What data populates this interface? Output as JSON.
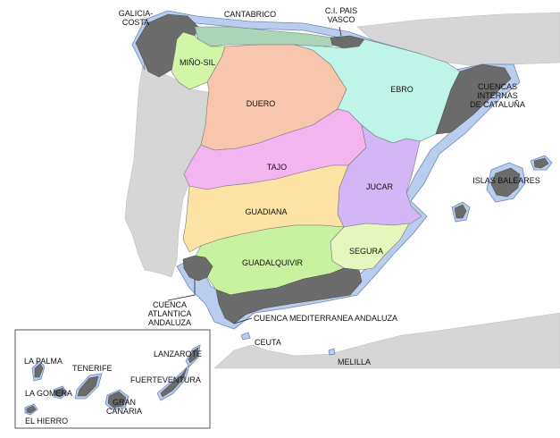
{
  "map": {
    "basins": [
      {
        "key": "galicia",
        "label": "GALICIA-\nCOSTA",
        "color": "#6b6b6b"
      },
      {
        "key": "cantabrico",
        "label": "CANTABRICO",
        "color": "#a9d6b9"
      },
      {
        "key": "pais_vasco",
        "label": "C.I. PAIS\nVASCO",
        "color": "#6b6b6b"
      },
      {
        "key": "mino_sil",
        "label": "MIÑO-SIL",
        "color": "#d3f5a8"
      },
      {
        "key": "duero",
        "label": "DUERO",
        "color": "#f7c6ac"
      },
      {
        "key": "ebro",
        "label": "EBRO",
        "color": "#bff5e9"
      },
      {
        "key": "cataluna",
        "label": "CUENCAS\nINTERNAS\nDE CATALUÑA",
        "color": "#6b6b6b"
      },
      {
        "key": "tajo",
        "label": "TAJO",
        "color": "#f3b5ef"
      },
      {
        "key": "jucar",
        "label": "JUCAR",
        "color": "#d2b6f5"
      },
      {
        "key": "baleares",
        "label": "ISLAS BALEARES",
        "color": "#6b6b6b"
      },
      {
        "key": "guadiana",
        "label": "GUADIANA",
        "color": "#fde2a6"
      },
      {
        "key": "segura",
        "label": "SEGURA",
        "color": "#e6f7bd"
      },
      {
        "key": "guadalquivir",
        "label": "GUADALQUIVIR",
        "color": "#c9f2a0"
      },
      {
        "key": "atlantica",
        "label": "CUENCA\nATLANTICA\nANDALUZA",
        "color": "#6b6b6b"
      },
      {
        "key": "mediterranea",
        "label": "CUENCA MEDITERRANEA ANDALUZA",
        "color": "#6b6b6b"
      },
      {
        "key": "ceuta",
        "label": "CEUTA",
        "color": "#d6d6d6"
      },
      {
        "key": "melilla",
        "label": "MELILLA",
        "color": "#d6d6d6"
      }
    ],
    "canarias": [
      {
        "key": "la_palma",
        "label": "LA PALMA"
      },
      {
        "key": "tenerife",
        "label": "TENERIFE"
      },
      {
        "key": "la_gomera",
        "label": "LA GOMERA"
      },
      {
        "key": "el_hierro",
        "label": "EL HIERRO"
      },
      {
        "key": "gran_canaria",
        "label": "GRAN\nCANARIA"
      },
      {
        "key": "lanzarote",
        "label": "LANZAROTE"
      },
      {
        "key": "fuerteventura",
        "label": "FUERTEVENTURA"
      }
    ],
    "colors": {
      "sea_buffer": "#b9cdee",
      "neighbour_land": "#d6d6d6",
      "island_basins": "#6b6b6b"
    }
  }
}
